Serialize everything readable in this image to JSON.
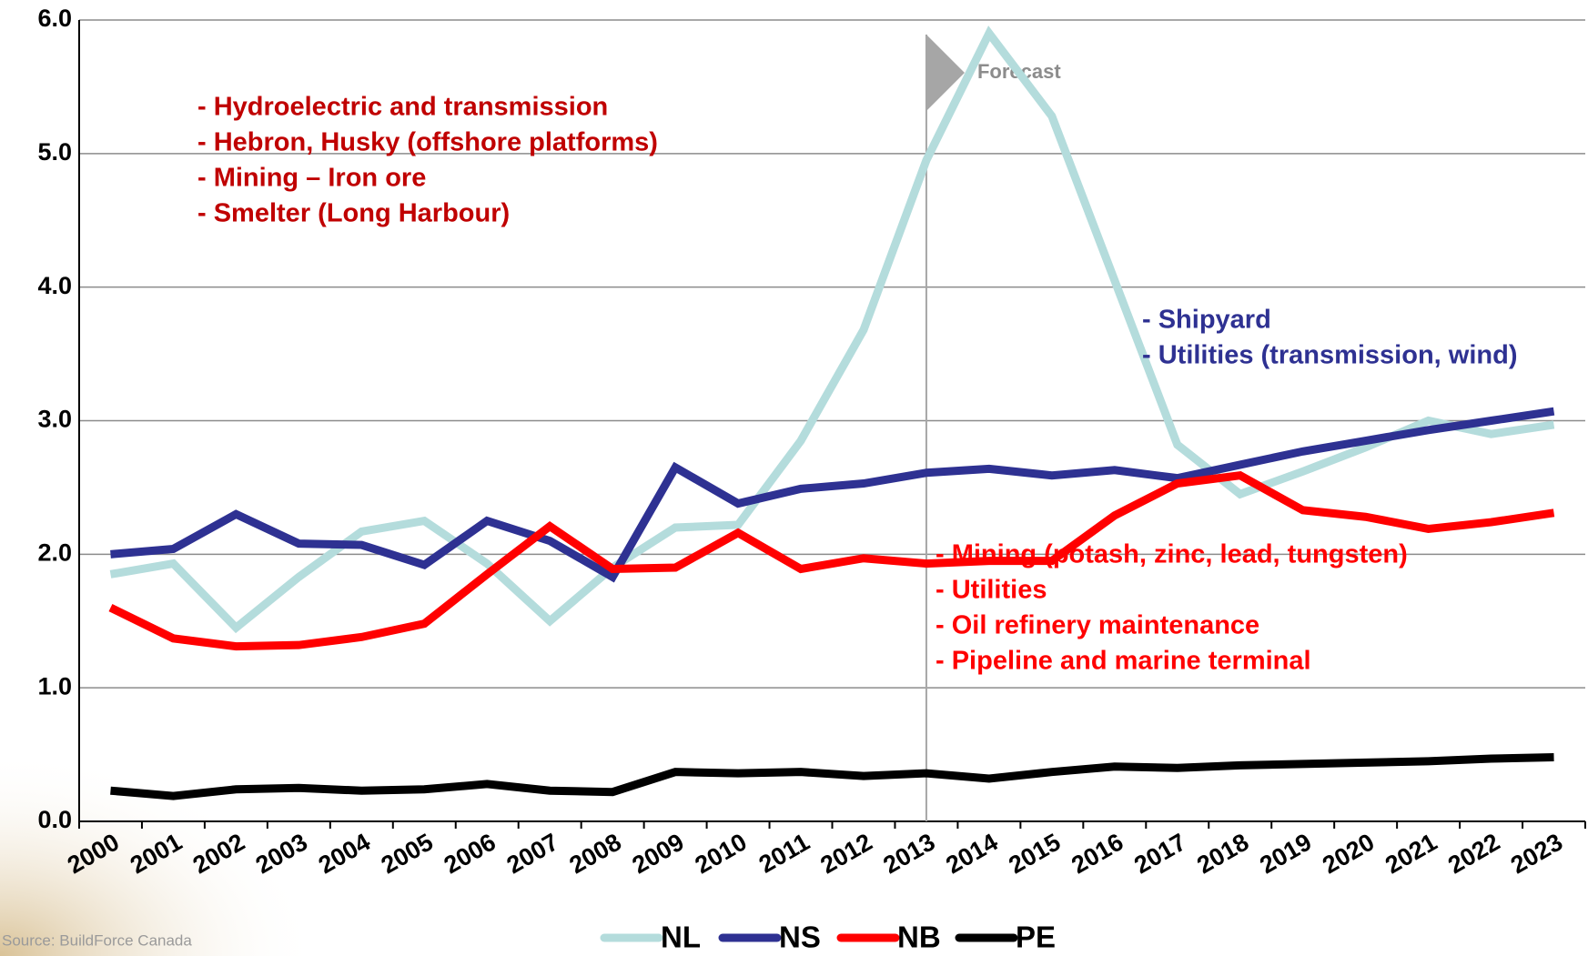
{
  "chart_data": {
    "type": "line",
    "categories": [
      "2000",
      "2001",
      "2002",
      "2003",
      "2004",
      "2005",
      "2006",
      "2007",
      "2008",
      "2009",
      "2010",
      "2011",
      "2012",
      "2013",
      "2014",
      "2015",
      "2016",
      "2017",
      "2018",
      "2019",
      "2020",
      "2021",
      "2022",
      "2023"
    ],
    "series": [
      {
        "name": "NL",
        "color": "#b4dcdc",
        "values": [
          1.85,
          1.93,
          1.45,
          1.83,
          2.17,
          2.25,
          1.93,
          1.5,
          1.9,
          2.2,
          2.22,
          2.85,
          3.68,
          4.95,
          5.9,
          5.28,
          4.05,
          2.82,
          2.45,
          2.62,
          2.8,
          3.0,
          2.9,
          2.97
        ]
      },
      {
        "name": "NS",
        "color": "#2e3192",
        "values": [
          2.0,
          2.04,
          2.3,
          2.08,
          2.07,
          1.92,
          2.25,
          2.1,
          1.83,
          2.65,
          2.38,
          2.49,
          2.53,
          2.61,
          2.64,
          2.59,
          2.63,
          2.57,
          2.67,
          2.77,
          2.85,
          2.93,
          3.0,
          3.07
        ]
      },
      {
        "name": "NB",
        "color": "#ff0000",
        "values": [
          1.6,
          1.37,
          1.31,
          1.32,
          1.38,
          1.48,
          1.85,
          2.21,
          1.89,
          1.9,
          2.16,
          1.89,
          1.97,
          1.93,
          1.95,
          1.95,
          2.29,
          2.53,
          2.59,
          2.33,
          2.28,
          2.19,
          2.24,
          2.31
        ]
      },
      {
        "name": "PE",
        "color": "#000000",
        "values": [
          0.23,
          0.19,
          0.24,
          0.25,
          0.23,
          0.24,
          0.28,
          0.23,
          0.22,
          0.37,
          0.36,
          0.37,
          0.34,
          0.36,
          0.32,
          0.37,
          0.41,
          0.4,
          0.42,
          0.43,
          0.44,
          0.45,
          0.47,
          0.48
        ]
      }
    ],
    "ylim": [
      0,
      6
    ],
    "yticks": [
      {
        "value": 0,
        "label": "0.0"
      },
      {
        "value": 1,
        "label": "1.0"
      },
      {
        "value": 2,
        "label": "2.0"
      },
      {
        "value": 3,
        "label": "3.0"
      },
      {
        "value": 4,
        "label": "4.0"
      },
      {
        "value": 5,
        "label": "5.0"
      },
      {
        "value": 6,
        "label": "6.0"
      }
    ],
    "grid": true,
    "forecast": {
      "label": "Forecast",
      "at": "2013"
    },
    "annotations": [
      {
        "color": "#c00000",
        "lines": [
          "- Hydroelectric and transmission",
          "- Hebron, Husky (offshore platforms)",
          "- Mining – Iron ore",
          "- Smelter (Long Harbour)"
        ]
      },
      {
        "color": "#2e3192",
        "lines": [
          "- Shipyard",
          "- Utilities (transmission, wind)"
        ]
      },
      {
        "color": "#ff0000",
        "lines": [
          "- Mining (potash, zinc, lead, tungsten)",
          "- Utilities",
          "- Oil refinery maintenance",
          "- Pipeline and marine terminal"
        ]
      }
    ],
    "source": "Source: BuildForce Canada",
    "legend": "bottom"
  }
}
